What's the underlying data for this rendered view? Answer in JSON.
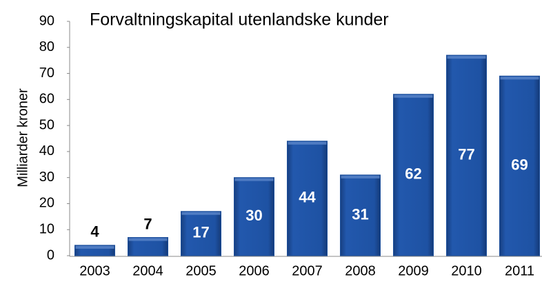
{
  "chart_data": {
    "type": "bar",
    "title": "Forvaltningskapital utenlandske kunder",
    "y_label": "Milliarder kroner",
    "categories": [
      "2003",
      "2004",
      "2005",
      "2006",
      "2007",
      "2008",
      "2009",
      "2010",
      "2011"
    ],
    "values": [
      4,
      7,
      17,
      30,
      44,
      31,
      62,
      77,
      69
    ],
    "color": "#1c4f9c",
    "ylim": [
      0,
      90
    ],
    "yticks": [
      0,
      10,
      20,
      30,
      40,
      50,
      60,
      70,
      80,
      90
    ],
    "grid": false
  }
}
